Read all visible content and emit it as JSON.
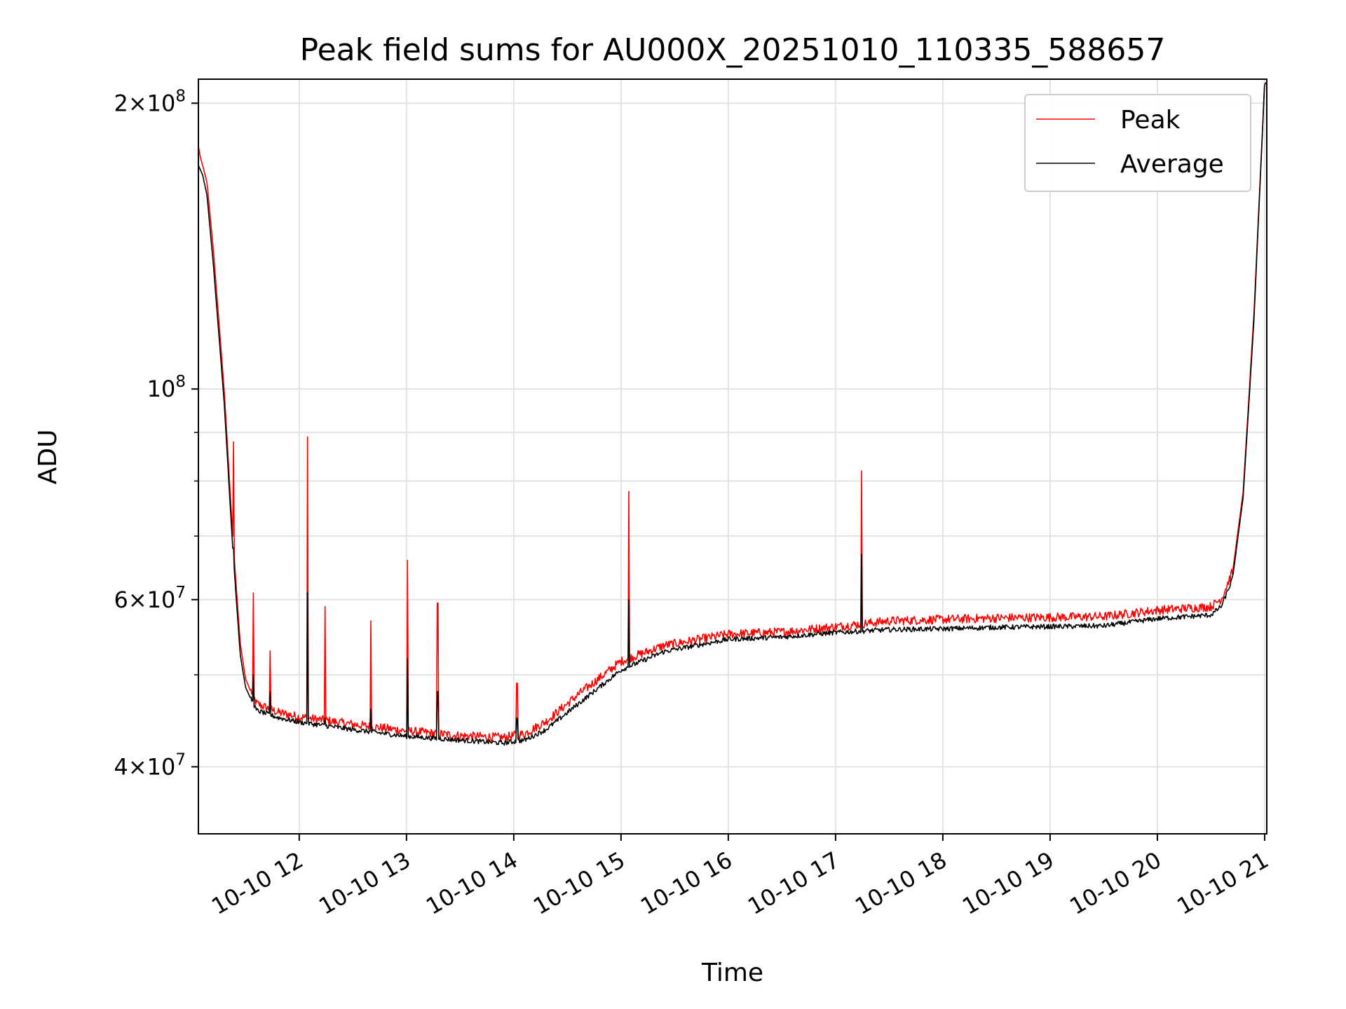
{
  "chart_data": {
    "type": "line",
    "title": "Peak field sums for AU000X_20251010_110335_588657",
    "xlabel": "Time",
    "ylabel": "ADU",
    "yscale": "log",
    "ylim": [
      34000000,
      212000000
    ],
    "xlim": [
      11.06,
      21.02
    ],
    "grid": true,
    "legend_position": "top-right",
    "x_ticks": [
      {
        "value": 12,
        "label": "10-10 12"
      },
      {
        "value": 13,
        "label": "10-10 13"
      },
      {
        "value": 14,
        "label": "10-10 14"
      },
      {
        "value": 15,
        "label": "10-10 15"
      },
      {
        "value": 16,
        "label": "10-10 16"
      },
      {
        "value": 17,
        "label": "10-10 17"
      },
      {
        "value": 18,
        "label": "10-10 18"
      },
      {
        "value": 19,
        "label": "10-10 19"
      },
      {
        "value": 20,
        "label": "10-10 20"
      },
      {
        "value": 21,
        "label": "10-10 21"
      }
    ],
    "y_ticks": [
      {
        "value": 40000000,
        "base": "4×10",
        "exp": "7"
      },
      {
        "value": 60000000,
        "base": "6×10",
        "exp": "7"
      },
      {
        "value": 100000000,
        "base": "10",
        "exp": "8"
      },
      {
        "value": 200000000,
        "base": "2×10",
        "exp": "8"
      }
    ],
    "y_minor_ticks": [
      50000000,
      70000000,
      80000000,
      90000000
    ],
    "series": [
      {
        "name": "Peak",
        "color": "#ff0000",
        "x": [
          11.06,
          11.08,
          11.1,
          11.14,
          11.2,
          11.3,
          11.38,
          11.45,
          11.5,
          11.6,
          11.8,
          12.0,
          12.5,
          13.0,
          13.5,
          13.9,
          14.1,
          14.3,
          14.6,
          15.0,
          15.4,
          16.0,
          16.5,
          17.0,
          17.5,
          18.0,
          18.5,
          19.0,
          19.5,
          20.0,
          20.5,
          20.6,
          20.7,
          20.8,
          20.9,
          21.0
        ],
        "values": [
          180000000,
          175000000,
          172000000,
          165000000,
          140000000,
          100000000,
          70000000,
          54000000,
          49500000,
          46500000,
          45500000,
          45000000,
          44200000,
          43500000,
          43000000,
          42800000,
          43200000,
          44500000,
          47500000,
          51500000,
          53500000,
          55000000,
          55300000,
          56000000,
          56800000,
          57000000,
          57200000,
          57300000,
          57400000,
          58300000,
          58800000,
          60000000,
          64000000,
          78000000,
          120000000,
          210000000
        ]
      },
      {
        "name": "Average",
        "color": "#000000",
        "x": [
          11.06,
          11.08,
          11.1,
          11.14,
          11.2,
          11.3,
          11.38,
          11.45,
          11.5,
          11.6,
          11.8,
          12.0,
          12.5,
          13.0,
          13.5,
          13.9,
          14.1,
          14.3,
          14.6,
          15.0,
          15.4,
          16.0,
          16.5,
          17.0,
          17.5,
          18.0,
          18.5,
          19.0,
          19.5,
          20.0,
          20.5,
          20.6,
          20.7,
          20.8,
          20.9,
          21.0
        ],
        "values": [
          172000000,
          170000000,
          168000000,
          160000000,
          135000000,
          97000000,
          68000000,
          52500000,
          48500000,
          45800000,
          45000000,
          44500000,
          43700000,
          43000000,
          42600000,
          42300000,
          42600000,
          43700000,
          46500000,
          50500000,
          52800000,
          54400000,
          54700000,
          55300000,
          55700000,
          55800000,
          56000000,
          56100000,
          56200000,
          57200000,
          57700000,
          59000000,
          63000000,
          77000000,
          118000000,
          210000000
        ]
      }
    ],
    "spikes": [
      {
        "x": 11.39,
        "peak": 88000000,
        "average": 68000000
      },
      {
        "x": 11.57,
        "peak": 61000000,
        "average": 50000000
      },
      {
        "x": 11.73,
        "peak": 53000000,
        "average": 48000000
      },
      {
        "x": 12.08,
        "peak": 89000000,
        "average": 61000000
      },
      {
        "x": 12.24,
        "peak": 59000000,
        "average": 45000000
      },
      {
        "x": 12.67,
        "peak": 57000000,
        "average": 46000000
      },
      {
        "x": 13.01,
        "peak": 66000000,
        "average": 52000000
      },
      {
        "x": 13.29,
        "peak": 59500000,
        "average": 48000000
      },
      {
        "x": 14.03,
        "peak": 49000000,
        "average": 45000000
      },
      {
        "x": 15.07,
        "peak": 78000000,
        "average": 60000000
      },
      {
        "x": 17.24,
        "peak": 82000000,
        "average": 67000000
      }
    ],
    "legend": [
      {
        "label": "Peak",
        "color": "#ff0000"
      },
      {
        "label": "Average",
        "color": "#000000"
      }
    ]
  }
}
